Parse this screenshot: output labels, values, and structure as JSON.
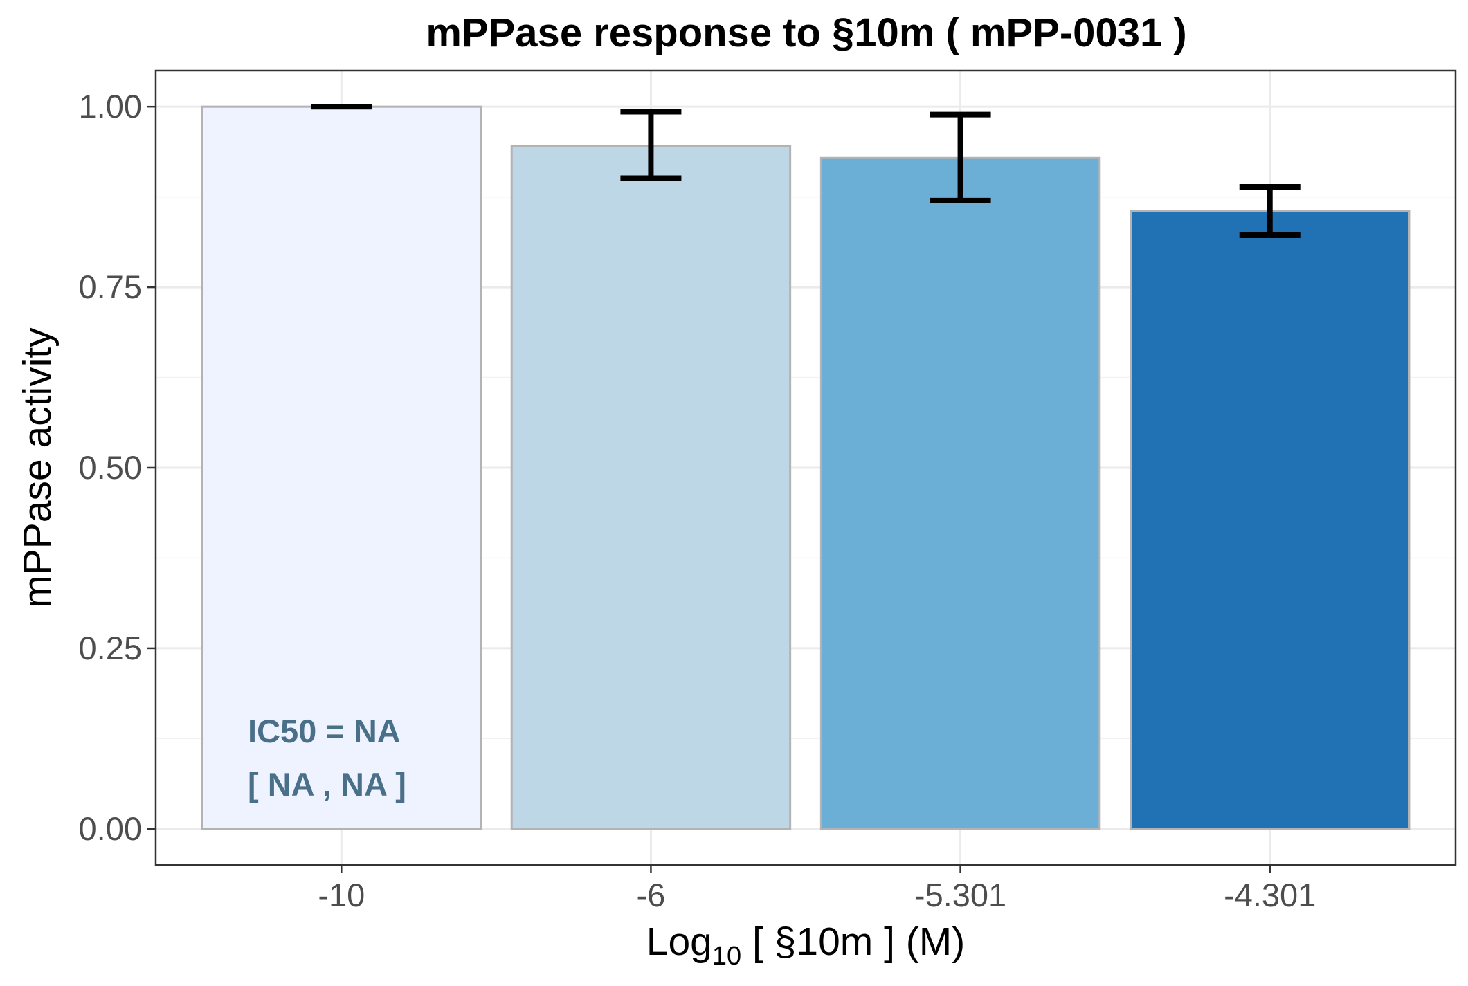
{
  "chart_data": {
    "type": "bar",
    "title": "mPPase response to §10m ( mPP-0031 )",
    "xlabel": {
      "prefix": "Log",
      "subscript": "10",
      "suffix": "  [ §10m ] (M)"
    },
    "ylabel": "mPPase activity",
    "categories": [
      "-10",
      "-6",
      "-5.301",
      "-4.301"
    ],
    "values": [
      1.0,
      0.946,
      0.929,
      0.855
    ],
    "error_low": [
      1.0,
      0.901,
      0.87,
      0.822
    ],
    "error_high": [
      1.0,
      0.993,
      0.989,
      0.889
    ],
    "colors": [
      "#eff3ff",
      "#bdd7e7",
      "#6baed6",
      "#2171b5"
    ],
    "bar_border_color": "#b3b3b3",
    "ylim": [
      -0.05,
      1.05
    ],
    "yticks": [
      0.0,
      0.25,
      0.5,
      0.75,
      1.0
    ],
    "ytick_labels": [
      "0.00",
      "0.25",
      "0.50",
      "0.75",
      "1.00"
    ],
    "grid": true,
    "annotation": {
      "line1": "IC50 = NA",
      "line2": "[ NA , NA ]",
      "color": "#4a7089"
    }
  }
}
